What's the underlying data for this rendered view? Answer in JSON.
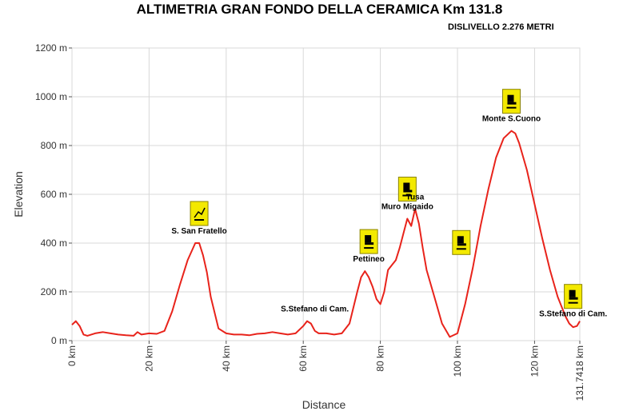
{
  "title": "ALTIMETRIA GRAN  FONDO DELLA CERAMICA Km 131.8",
  "subtitle": "DISLIVELLO 2.276 METRI",
  "chart_data": {
    "type": "line",
    "title": "ALTIMETRIA GRAN  FONDO DELLA CERAMICA Km 131.8",
    "subtitle": "DISLIVELLO 2.276 METRI",
    "xlabel": "Distance",
    "ylabel": "Elevation",
    "xlim": [
      0,
      131.7418
    ],
    "ylim": [
      0,
      1200
    ],
    "grid": true,
    "line_color": "#e8231b",
    "x_ticks": [
      {
        "value": 0,
        "label": "0 km"
      },
      {
        "value": 20,
        "label": "20 km"
      },
      {
        "value": 40,
        "label": "40 km"
      },
      {
        "value": 60,
        "label": "60 km"
      },
      {
        "value": 80,
        "label": "80 km"
      },
      {
        "value": 100,
        "label": "100 km"
      },
      {
        "value": 120,
        "label": "120 km"
      },
      {
        "value": 131.7418,
        "label": "131.7418 km"
      }
    ],
    "y_ticks": [
      {
        "value": 0,
        "label": "0 m"
      },
      {
        "value": 200,
        "label": "200 m"
      },
      {
        "value": 400,
        "label": "400 m"
      },
      {
        "value": 600,
        "label": "600 m"
      },
      {
        "value": 800,
        "label": "800 m"
      },
      {
        "value": 1000,
        "label": "1000 m"
      },
      {
        "value": 1200,
        "label": "1200 m"
      }
    ],
    "x": [
      0,
      1,
      2,
      3,
      4,
      6,
      8,
      10,
      12,
      14,
      16,
      17,
      18,
      20,
      22,
      24,
      26,
      28,
      30,
      32,
      33,
      34,
      35,
      36,
      38,
      40,
      42,
      44,
      46,
      48,
      50,
      52,
      54,
      56,
      58,
      60,
      61,
      62,
      63,
      64,
      66,
      68,
      70,
      72,
      74,
      75,
      76,
      77,
      78,
      79,
      80,
      81,
      82,
      83,
      84,
      85,
      86,
      87,
      88,
      89,
      90,
      91,
      92,
      94,
      96,
      98,
      100,
      102,
      104,
      106,
      108,
      110,
      112,
      114,
      115,
      116,
      118,
      120,
      122,
      124,
      126,
      128,
      129,
      130,
      131,
      131.7418
    ],
    "y": [
      65,
      80,
      60,
      25,
      20,
      30,
      35,
      30,
      25,
      22,
      20,
      35,
      25,
      30,
      28,
      40,
      120,
      230,
      330,
      400,
      400,
      350,
      280,
      180,
      50,
      30,
      25,
      25,
      22,
      28,
      30,
      35,
      30,
      25,
      30,
      60,
      80,
      70,
      40,
      30,
      30,
      25,
      30,
      70,
      200,
      260,
      285,
      260,
      220,
      170,
      150,
      200,
      290,
      310,
      330,
      380,
      440,
      500,
      470,
      540,
      480,
      380,
      290,
      180,
      70,
      15,
      30,
      150,
      300,
      470,
      620,
      750,
      830,
      860,
      850,
      810,
      700,
      560,
      420,
      290,
      180,
      100,
      70,
      55,
      60,
      80
    ],
    "annotations": [
      {
        "text": "S. San Fratello",
        "x": 33,
        "y": 400,
        "icon": "chart-icon"
      },
      {
        "text": "S.Stefano di Cam.",
        "x": 63,
        "y": 80
      },
      {
        "text": "Pettineo",
        "x": 77,
        "y": 285,
        "icon": "gauge-icon"
      },
      {
        "text": "Muro Migaido",
        "x": 87,
        "y": 500,
        "icon": "gauge-icon"
      },
      {
        "text": "Tusa",
        "x": 89,
        "y": 540
      },
      {
        "text": "",
        "x": 101,
        "y": 340,
        "icon": "gauge-icon"
      },
      {
        "text": "Monte S.Cuono",
        "x": 114,
        "y": 860,
        "icon": "gauge-icon"
      },
      {
        "text": "S.Stefano di Cam.",
        "x": 130,
        "y": 60,
        "icon": "gauge-icon"
      }
    ]
  }
}
